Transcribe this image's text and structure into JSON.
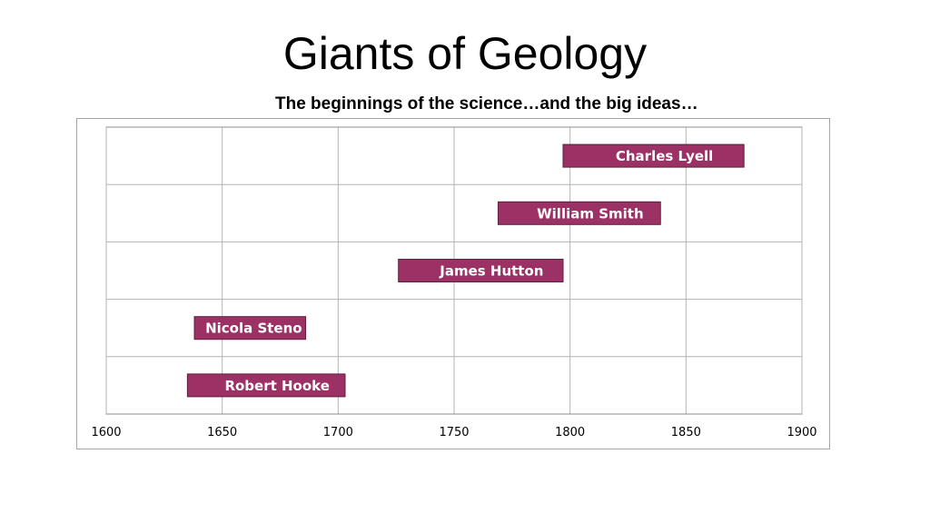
{
  "title": "Giants of Geology",
  "subtitle": "The beginnings of the science…and the big ideas…",
  "chart_data": {
    "type": "bar",
    "orientation": "horizontal-floating",
    "title": "",
    "xlabel": "",
    "ylabel": "",
    "xlim": [
      1600,
      1900
    ],
    "x_ticks": [
      "1600",
      "1650",
      "1700",
      "1750",
      "1800",
      "1850",
      "1900"
    ],
    "grid": true,
    "bar_color": "#9b3164",
    "label_color": "#ffffff",
    "categories": [
      "Robert Hooke",
      "Nicola Steno",
      "James Hutton",
      "William Smith",
      "Charles Lyell"
    ],
    "series": [
      {
        "start": [
          1635,
          1638,
          1726,
          1769,
          1797
        ],
        "end": [
          1703,
          1686,
          1797,
          1839,
          1875
        ]
      }
    ]
  }
}
